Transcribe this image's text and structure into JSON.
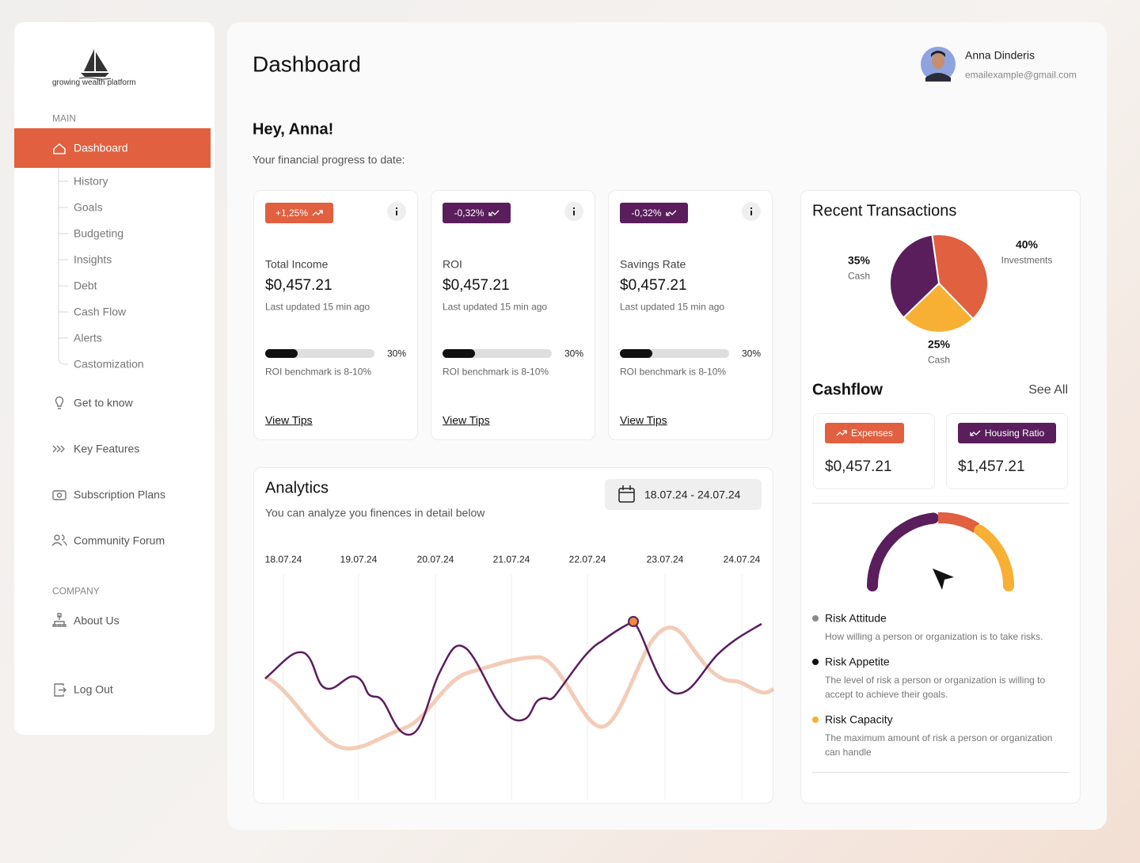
{
  "brand": {
    "tagline": "growing wealth platform"
  },
  "sidebar": {
    "main_label": "MAIN",
    "active": "Dashboard",
    "subitems": [
      "History",
      "Goals",
      "Budgeting",
      "Insights",
      "Debt",
      "Cash Flow",
      "Alerts",
      "Castomization"
    ],
    "secondary": [
      "Get to know",
      "Key Features",
      "Subscription Plans",
      "Community Forum"
    ],
    "company_label": "COMPANY",
    "about": "About Us",
    "logout": "Log Out"
  },
  "header": {
    "title": "Dashboard",
    "user_name": "Anna Dinderis",
    "user_email": "emailexample@gmail.com"
  },
  "greeting": {
    "title": "Hey, Anna!",
    "subtitle": "Your financial progress to date:"
  },
  "cards": [
    {
      "badge": "+1,25%",
      "trend": "up",
      "title": "Total Income",
      "amount": "$0,457.21",
      "updated": "Last updated 15 min ago",
      "progress": 30,
      "progress_label": "30%",
      "benchmark": "ROI benchmark is 8-10%",
      "link": "View Tips"
    },
    {
      "badge": "-0,32%",
      "trend": "down",
      "title": "ROI",
      "amount": "$0,457.21",
      "updated": "Last updated 15 min ago",
      "progress": 30,
      "progress_label": "30%",
      "benchmark": "ROI benchmark is 8-10%",
      "link": "View Tips"
    },
    {
      "badge": "-0,32%",
      "trend": "down",
      "title": "Savings Rate",
      "amount": "$0,457.21",
      "updated": "Last updated 15 min ago",
      "progress": 30,
      "progress_label": "30%",
      "benchmark": "ROI benchmark is 8-10%",
      "link": "View Tips"
    }
  ],
  "analytics": {
    "title": "Analytics",
    "subtitle": "You can analyze you finences in detail below",
    "date_range": "18.07.24 - 24.07.24",
    "dates": [
      "18.07.24",
      "19.07.24",
      "20.07.24",
      "21.07.24",
      "22.07.24",
      "23.07.24",
      "24.07.24"
    ]
  },
  "transactions": {
    "title": "Recent Transactions",
    "slices": [
      {
        "name": "Investments",
        "value": 40,
        "label": "40%",
        "color": "#e0603f"
      },
      {
        "name": "Cash",
        "value": 25,
        "label": "25%",
        "color": "#f7b034"
      },
      {
        "name": "Cash",
        "value": 35,
        "label": "35%",
        "color": "#5a1e5c"
      }
    ]
  },
  "cashflow": {
    "title": "Cashflow",
    "see_all": "See All",
    "items": [
      {
        "badge": "Expenses",
        "trend": "up",
        "amount": "$0,457.21",
        "color": "#e0603f"
      },
      {
        "badge": "Housing Ratio",
        "trend": "down",
        "amount": "$1,457.21",
        "color": "#5a1e5c"
      }
    ]
  },
  "risk": [
    {
      "title": "Risk Attitude",
      "text": "How willing a person or organization is to take risks.",
      "color": "#8a8a8a"
    },
    {
      "title": "Risk Appetite",
      "text": "The level of risk a person or organization is willing to accept to achieve their goals.",
      "color": "#111111"
    },
    {
      "title": "Risk Capacity",
      "text": "The maximum amount of risk a person or organization can handle",
      "color": "#f7b034"
    }
  ]
}
